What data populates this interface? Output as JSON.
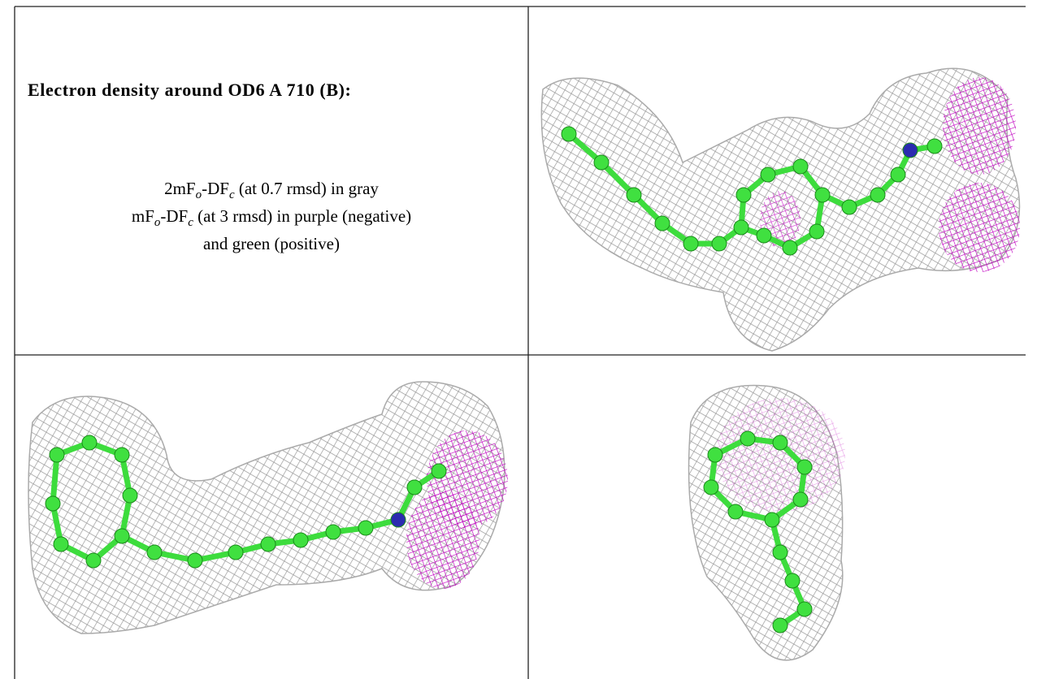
{
  "header": {
    "title": "Electron density around OD6 A 710 (B):"
  },
  "legend": {
    "lines": [
      [
        {
          "text": "2mF"
        },
        {
          "sub": "o"
        },
        {
          "text": "-DF"
        },
        {
          "sub": "c"
        },
        {
          "text": " (at 0.7 rmsd) in gray"
        }
      ],
      [
        {
          "text": "mF"
        },
        {
          "sub": "o"
        },
        {
          "text": "-DF"
        },
        {
          "sub": "c"
        },
        {
          "text": " (at 3 rmsd) in purple (negative)"
        }
      ],
      [
        {
          "text": "and green (positive)"
        }
      ]
    ]
  }
}
